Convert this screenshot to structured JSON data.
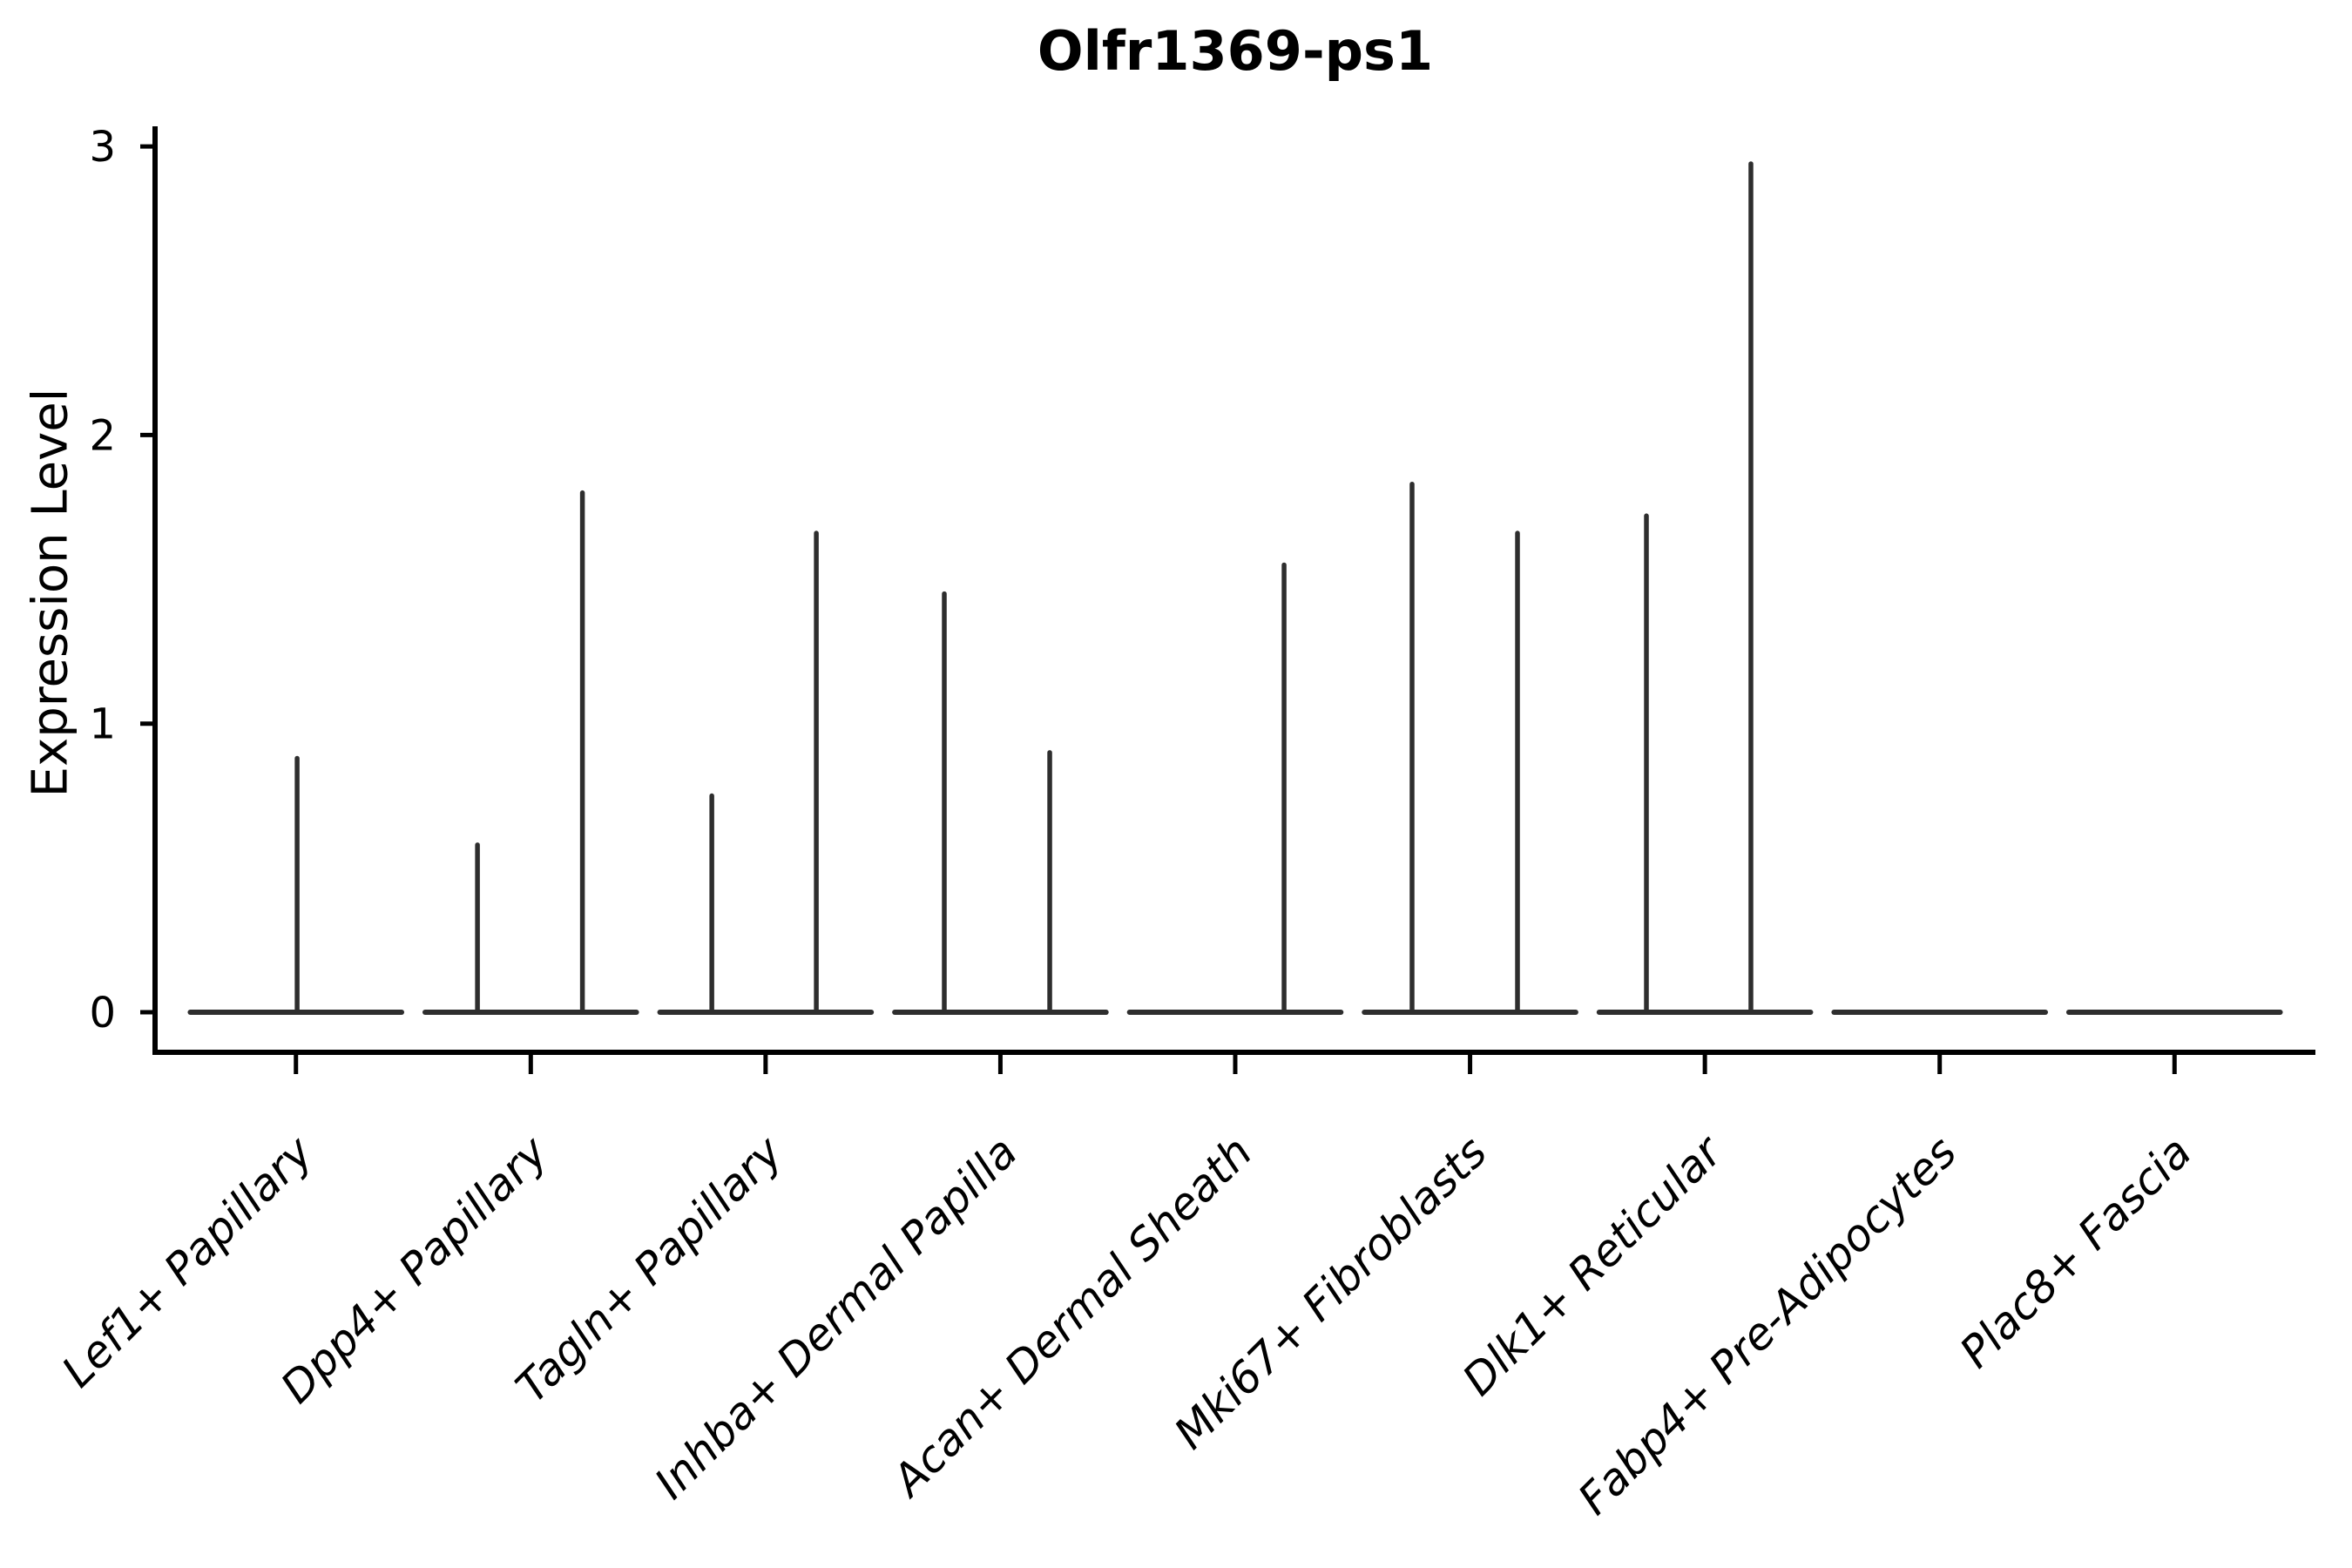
{
  "chart_data": {
    "type": "violin",
    "title": "Olfr1369-ps1",
    "ylabel": "Expression Level",
    "xlabel": "",
    "ylim": [
      0,
      3
    ],
    "yticks": [
      0,
      1,
      2,
      3
    ],
    "ytick_labels": [
      "0",
      "1",
      "2",
      "3"
    ],
    "grid": false,
    "legend": "none",
    "categories": [
      "Lef1+ Papillary",
      "Dpp4+ Papillary",
      "Tagln+ Papillary",
      "Inhba+ Dermal Papilla",
      "Acan+ Dermal Sheath",
      "Mki67+ Fibroblasts",
      "Dlk1+ Reticular",
      "Fabp4+ Pre-Adipocytes",
      "Plac8+ Fascia"
    ],
    "violin_width": 0.9,
    "violins": [
      {
        "category": "Lef1+ Papillary",
        "baseline_value": 0,
        "spikes": [
          {
            "offset": 0.005,
            "value": 0.88
          }
        ]
      },
      {
        "category": "Dpp4+ Papillary",
        "baseline_value": 0,
        "spikes": [
          {
            "offset": -0.227,
            "value": 0.58
          },
          {
            "offset": 0.22,
            "value": 1.8
          }
        ]
      },
      {
        "category": "Tagln+ Papillary",
        "baseline_value": 0,
        "spikes": [
          {
            "offset": -0.229,
            "value": 0.75
          },
          {
            "offset": 0.216,
            "value": 1.66
          }
        ]
      },
      {
        "category": "Inhba+ Dermal Papilla",
        "baseline_value": 0,
        "spikes": [
          {
            "offset": -0.239,
            "value": 1.45
          },
          {
            "offset": 0.21,
            "value": 0.9
          }
        ]
      },
      {
        "category": "Acan+ Dermal Sheath",
        "baseline_value": 0,
        "spikes": [
          {
            "offset": 0.208,
            "value": 1.55
          }
        ]
      },
      {
        "category": "Mki67+ Fibroblasts",
        "baseline_value": 0,
        "spikes": [
          {
            "offset": -0.247,
            "value": 1.83
          },
          {
            "offset": 0.202,
            "value": 1.66
          }
        ]
      },
      {
        "category": "Dlk1+ Reticular",
        "baseline_value": 0,
        "spikes": [
          {
            "offset": -0.249,
            "value": 1.72
          },
          {
            "offset": 0.196,
            "value": 2.94
          }
        ]
      },
      {
        "category": "Fabp4+ Pre-Adipocytes",
        "baseline_value": 0,
        "spikes": []
      },
      {
        "category": "Plac8+ Fascia",
        "baseline_value": 0,
        "spikes": []
      }
    ],
    "colors": {
      "violin_stroke": "#2e2e2e",
      "axis": "#000000",
      "text": "#000000",
      "background": "#ffffff"
    }
  }
}
